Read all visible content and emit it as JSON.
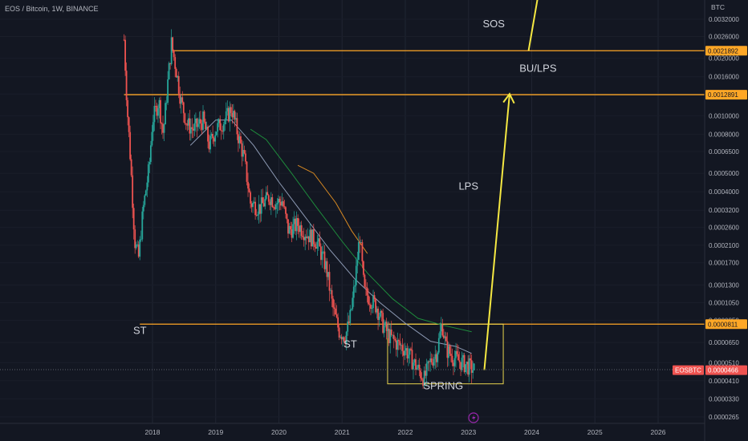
{
  "header": {
    "title": "EOS / Bitcoin, 1W, BINANCE"
  },
  "price_axis": {
    "unit": "BTC",
    "ticks": [
      "0.0032000",
      "0.0026000",
      "0.0020000",
      "0.0016000",
      "0.0013000",
      "0.0010000",
      "0.0008000",
      "0.0006500",
      "0.0005000",
      "0.0004000",
      "0.0003200",
      "0.0002600",
      "0.0002100",
      "0.0001700",
      "0.0001300",
      "0.0001050",
      "0.0000850",
      "0.0000650",
      "0.0000510",
      "0.0000410",
      "0.0000330",
      "0.0000265"
    ],
    "badges": [
      {
        "label": "0.0021892",
        "value": 0.0021892,
        "kind": "level"
      },
      {
        "label": "0.0012891",
        "value": 0.0012891,
        "kind": "level"
      },
      {
        "label": "0.0000811",
        "value": 8.11e-05,
        "kind": "level"
      },
      {
        "label": "0.0000466",
        "value": 4.66e-05,
        "kind": "last"
      }
    ],
    "symbol_tag": "EOSBTC"
  },
  "time_axis": {
    "ticks": [
      "2018",
      "2019",
      "2020",
      "2021",
      "2022",
      "2023",
      "2024",
      "2025",
      "2026"
    ]
  },
  "chart_data": {
    "type": "candlestick",
    "title": "EOS / Bitcoin, 1W, BINANCE",
    "y_scale": "log",
    "ylim": [
      2.4e-05,
      0.0046
    ],
    "xlim": [
      2017.55,
      2026.65
    ],
    "price_path": [
      [
        2017.55,
        0.0025
      ],
      [
        2017.6,
        0.0011
      ],
      [
        2017.65,
        0.0006
      ],
      [
        2017.72,
        0.00022
      ],
      [
        2017.78,
        0.00018
      ],
      [
        2017.85,
        0.00032
      ],
      [
        2017.95,
        0.00055
      ],
      [
        2018.0,
        0.00095
      ],
      [
        2018.1,
        0.0012
      ],
      [
        2018.17,
        0.0008
      ],
      [
        2018.25,
        0.0016
      ],
      [
        2018.3,
        0.0024
      ],
      [
        2018.38,
        0.0017
      ],
      [
        2018.45,
        0.0012
      ],
      [
        2018.55,
        0.0009
      ],
      [
        2018.65,
        0.00085
      ],
      [
        2018.8,
        0.00095
      ],
      [
        2018.9,
        0.0007
      ],
      [
        2019.0,
        0.00085
      ],
      [
        2019.15,
        0.00095
      ],
      [
        2019.25,
        0.0011
      ],
      [
        2019.35,
        0.0008
      ],
      [
        2019.45,
        0.0006
      ],
      [
        2019.55,
        0.00035
      ],
      [
        2019.7,
        0.00033
      ],
      [
        2019.85,
        0.00038
      ],
      [
        2019.95,
        0.00035
      ],
      [
        2020.05,
        0.00036
      ],
      [
        2020.15,
        0.00025
      ],
      [
        2020.3,
        0.00027
      ],
      [
        2020.45,
        0.00024
      ],
      [
        2020.6,
        0.00022
      ],
      [
        2020.75,
        0.00016
      ],
      [
        2020.85,
        0.0001
      ],
      [
        2020.95,
        7.5e-05
      ],
      [
        2021.05,
        7e-05
      ],
      [
        2021.12,
        8.5e-05
      ],
      [
        2021.2,
        0.00013
      ],
      [
        2021.28,
        0.00024
      ],
      [
        2021.35,
        0.00012
      ],
      [
        2021.45,
        0.00011
      ],
      [
        2021.55,
        0.0001
      ],
      [
        2021.65,
        8e-05
      ],
      [
        2021.75,
        7e-05
      ],
      [
        2021.85,
        6.5e-05
      ],
      [
        2022.0,
        6e-05
      ],
      [
        2022.15,
        5e-05
      ],
      [
        2022.3,
        4.2e-05
      ],
      [
        2022.4,
        5.2e-05
      ],
      [
        2022.5,
        5.8e-05
      ],
      [
        2022.58,
        8.2e-05
      ],
      [
        2022.65,
        6e-05
      ],
      [
        2022.75,
        5.5e-05
      ],
      [
        2022.85,
        5.2e-05
      ],
      [
        2022.95,
        5e-05
      ],
      [
        2023.1,
        4.66e-05
      ]
    ],
    "moving_averages": [
      {
        "color": "#8e9bb5",
        "points": [
          [
            2018.6,
            0.0007
          ],
          [
            2019.0,
            0.00095
          ],
          [
            2019.25,
            0.00095
          ],
          [
            2019.6,
            0.0007
          ],
          [
            2020.0,
            0.00045
          ],
          [
            2020.4,
            0.0003
          ],
          [
            2020.8,
            0.0002
          ],
          [
            2021.2,
            0.00014
          ],
          [
            2021.6,
            0.000105
          ],
          [
            2022.0,
            8.2e-05
          ],
          [
            2022.4,
            6.6e-05
          ],
          [
            2022.8,
            6.2e-05
          ],
          [
            2023.05,
            5.7e-05
          ]
        ]
      },
      {
        "color": "#1e8c3c",
        "points": [
          [
            2019.55,
            0.00085
          ],
          [
            2019.8,
            0.00075
          ],
          [
            2020.2,
            0.0005
          ],
          [
            2020.6,
            0.00033
          ],
          [
            2021.0,
            0.00022
          ],
          [
            2021.4,
            0.00015
          ],
          [
            2021.8,
            0.00011
          ],
          [
            2022.2,
            8.7e-05
          ],
          [
            2022.6,
            8e-05
          ],
          [
            2023.05,
            7.4e-05
          ]
        ]
      },
      {
        "color": "#d58822",
        "points": [
          [
            2020.3,
            0.00055
          ],
          [
            2020.55,
            0.0005
          ],
          [
            2020.9,
            0.00035
          ],
          [
            2021.15,
            0.00025
          ],
          [
            2021.4,
            0.00019
          ]
        ]
      }
    ],
    "levels": [
      {
        "value": 0.0021892,
        "from": 2018.3,
        "color": "#ffa726"
      },
      {
        "value": 0.0012891,
        "from": 2017.55,
        "color": "#ffa726"
      },
      {
        "value": 8.11e-05,
        "from": 2017.8,
        "color": "#ffa726"
      }
    ],
    "box": {
      "x0": 2021.72,
      "x1": 2023.55,
      "y_top": 8.11e-05,
      "y_bottom": 3.95e-05,
      "color": "#e8d44d"
    },
    "projections": [
      {
        "from": [
          2023.25,
          4.66e-05
        ],
        "to": [
          2023.65,
          0.0013
        ],
        "arrow": true,
        "color": "#f5e842"
      },
      {
        "from": [
          2023.95,
          0.0021892
        ],
        "to": [
          2024.1,
          0.0047
        ],
        "arrow": false,
        "color": "#f5e842"
      }
    ],
    "annotations": [
      {
        "text": "ST",
        "x": 2017.8,
        "y": 7.2e-05
      },
      {
        "text": "ST",
        "x": 2021.13,
        "y": 6.1e-05
      },
      {
        "text": "SPRING",
        "x": 2022.6,
        "y": 3.7e-05
      },
      {
        "text": "LPS",
        "x": 2023.0,
        "y": 0.00041
      },
      {
        "text": "BU/LPS",
        "x": 2024.1,
        "y": 0.0017
      },
      {
        "text": "SOS",
        "x": 2023.4,
        "y": 0.0029
      }
    ],
    "current_price": 4.66e-05
  }
}
